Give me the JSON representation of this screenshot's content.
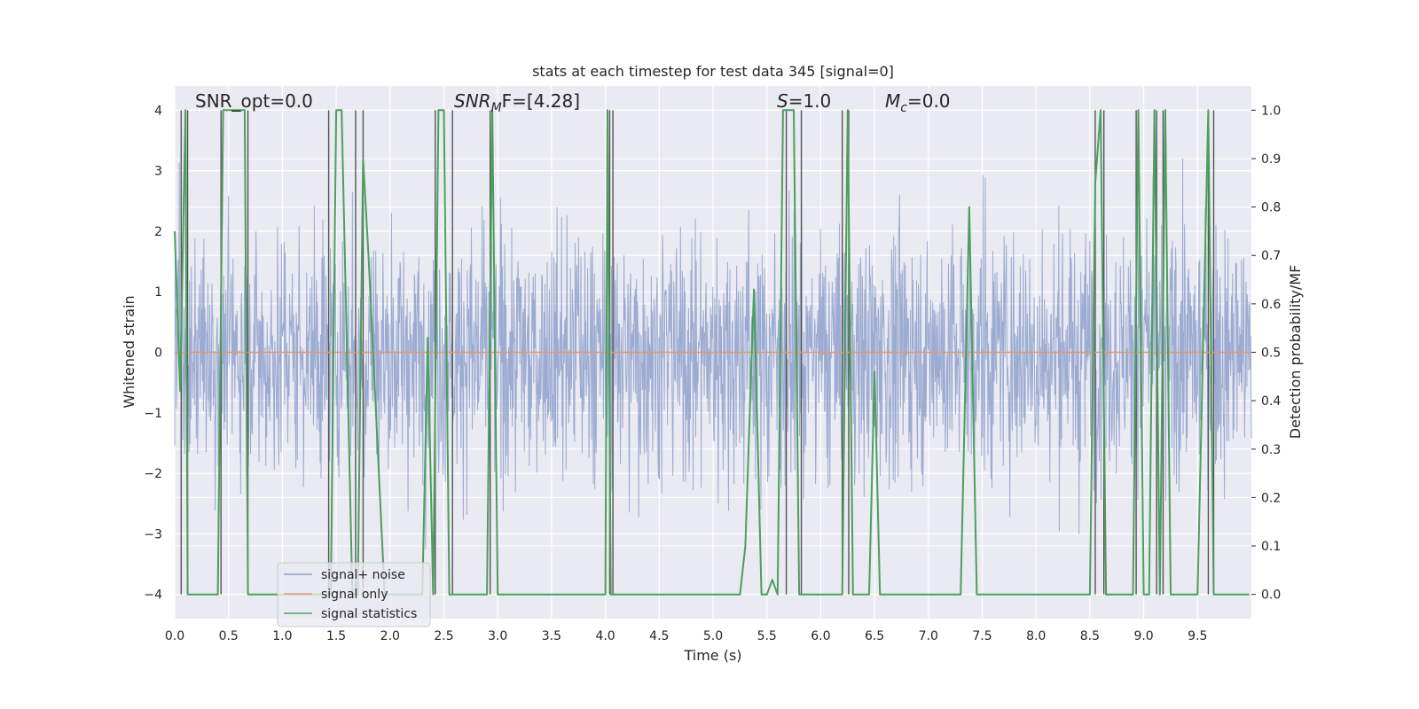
{
  "chart_data": {
    "type": "line",
    "title": "stats at each timestep for test data 345 [signal=0]",
    "xlabel": "Time (s)",
    "ylabel_left": "Whitened strain",
    "ylabel_right": "Detection probability/MF",
    "xlim": [
      0.0,
      10.0
    ],
    "ylim_left": [
      -4.4,
      4.4
    ],
    "ylim_right": [
      -0.05,
      1.05
    ],
    "x_ticks": [
      "0.0",
      "0.5",
      "1.0",
      "1.5",
      "2.0",
      "2.5",
      "3.0",
      "3.5",
      "4.0",
      "4.5",
      "5.0",
      "5.5",
      "6.0",
      "6.5",
      "7.0",
      "7.5",
      "8.0",
      "8.5",
      "9.0",
      "9.5"
    ],
    "y_ticks_left": [
      "4",
      "3",
      "2",
      "1",
      "0",
      "−1",
      "−2",
      "−3",
      "−4"
    ],
    "y_ticks_right": [
      "1.0",
      "0.9",
      "0.8",
      "0.7",
      "0.6",
      "0.5",
      "0.4",
      "0.3",
      "0.2",
      "0.1",
      "0.0"
    ],
    "grid": true,
    "background": "#eaeaf2",
    "annotations": {
      "snr_opt": "SNR_opt=0.0",
      "snr_mf_main": "SNR",
      "snr_mf_sub": "M",
      "snr_mf_rest": "F=[4.28]",
      "s_var": "S",
      "s_rest": "=1.0",
      "mc_var": "M",
      "mc_sub": "c",
      "mc_rest": "=0.0"
    },
    "legend": {
      "position": "lower-left",
      "entries": [
        {
          "label": "signal+ noise",
          "color": "#8ea0cb"
        },
        {
          "label": "signal only",
          "color": "#dd9a72"
        },
        {
          "label": "signal statistics",
          "color": "#4c9f5c"
        }
      ]
    },
    "series": [
      {
        "name": "signal+ noise",
        "axis": "left",
        "color": "#8ea0cb",
        "style": "dense noise, approx range -2.6 to 2.6 with spikes up to ±4"
      },
      {
        "name": "signal only",
        "axis": "left",
        "color": "#dd9a72",
        "x": [
          0.0,
          10.0
        ],
        "y": [
          0.0,
          0.0
        ]
      },
      {
        "name": "signal statistics",
        "axis": "right",
        "color": "#4c9f5c",
        "x": [
          0.0,
          0.05,
          0.1,
          0.12,
          0.18,
          0.4,
          0.45,
          0.5,
          0.55,
          0.65,
          0.68,
          0.75,
          1.4,
          1.45,
          1.5,
          1.55,
          1.65,
          1.7,
          1.75,
          1.8,
          1.95,
          2.3,
          2.35,
          2.4,
          2.45,
          2.5,
          2.55,
          2.7,
          2.9,
          2.95,
          3.0,
          3.05,
          3.5,
          4.0,
          4.02,
          4.05,
          4.1,
          4.5,
          5.0,
          5.25,
          5.3,
          5.38,
          5.45,
          5.5,
          5.55,
          5.6,
          5.65,
          5.7,
          5.75,
          5.8,
          5.85,
          6.0,
          6.2,
          6.25,
          6.3,
          6.4,
          6.45,
          6.5,
          6.55,
          6.6,
          7.0,
          7.3,
          7.38,
          7.45,
          7.5,
          8.0,
          8.5,
          8.55,
          8.6,
          8.65,
          8.7,
          8.9,
          8.95,
          9.0,
          9.05,
          9.1,
          9.15,
          9.2,
          9.25,
          9.5,
          9.6,
          9.65,
          9.7,
          9.98
        ],
        "y": [
          0.75,
          0.42,
          1.0,
          0.0,
          0.0,
          0.0,
          1.0,
          1.0,
          1.0,
          1.0,
          0.0,
          0.0,
          0.0,
          0.0,
          1.0,
          1.0,
          0.0,
          0.0,
          0.9,
          0.7,
          0.0,
          0.0,
          0.53,
          0.0,
          1.0,
          1.0,
          0.0,
          0.0,
          0.0,
          1.0,
          0.0,
          0.0,
          0.0,
          0.0,
          1.0,
          0.0,
          0.0,
          0.0,
          0.0,
          0.0,
          0.1,
          0.63,
          0.0,
          0.0,
          0.03,
          0.0,
          1.0,
          1.0,
          1.0,
          0.0,
          0.0,
          0.0,
          0.0,
          1.0,
          0.0,
          0.0,
          0.0,
          0.46,
          0.0,
          0.0,
          0.0,
          0.0,
          0.8,
          0.0,
          0.0,
          0.0,
          0.0,
          0.85,
          1.0,
          0.0,
          0.0,
          0.0,
          1.0,
          0.0,
          0.0,
          1.0,
          0.0,
          1.0,
          0.0,
          0.0,
          1.0,
          0.0,
          0.0,
          0.0
        ]
      }
    ],
    "vertical_markers_x": [
      0.06,
      0.12,
      0.43,
      0.68,
      1.43,
      1.68,
      1.75,
      2.42,
      2.58,
      2.93,
      4.04,
      4.07,
      5.68,
      5.82,
      6.2,
      6.26,
      8.55,
      8.63,
      8.93,
      9.12,
      9.18,
      9.6,
      9.65
    ]
  }
}
